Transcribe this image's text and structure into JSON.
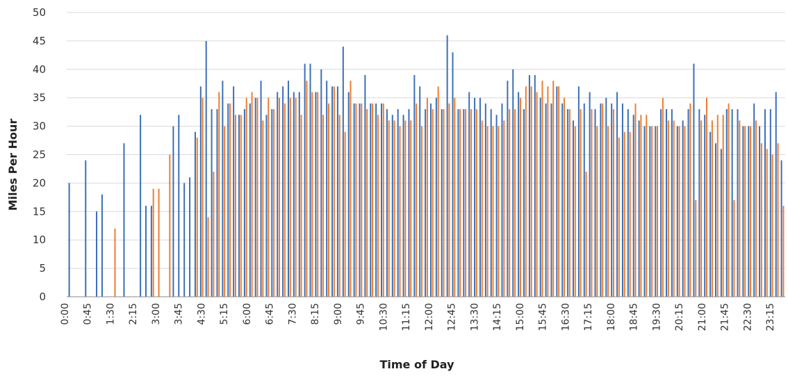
{
  "chart_data": {
    "type": "bar",
    "title": "",
    "xlabel": "Time of Day",
    "ylabel": "Miles Per Hour",
    "ylim": [
      0,
      50
    ],
    "yticks": [
      0,
      5,
      10,
      15,
      20,
      25,
      30,
      35,
      40,
      45,
      50
    ],
    "grid": true,
    "legend": "none",
    "interval_minutes": 15,
    "tick_labels": [
      "0:00",
      "0:45",
      "1:30",
      "2:15",
      "3:00",
      "3:45",
      "4:30",
      "5:15",
      "6:00",
      "6:45",
      "7:30",
      "8:15",
      "9:00",
      "9:45",
      "10:30",
      "11:15",
      "12:00",
      "12:45",
      "13:30",
      "14:15",
      "15:00",
      "15:45",
      "16:30",
      "17:15",
      "18:00",
      "18:45",
      "19:30",
      "20:15",
      "21:00",
      "21:45",
      "22:30",
      "23:15"
    ],
    "colors": {
      "series_1": "#3b6fb6",
      "series_2": "#ed7d31",
      "grid": "#d9d9d9",
      "axis": "#888888"
    },
    "series": [
      {
        "values": [
          20,
          0,
          0,
          24,
          0,
          15,
          18,
          0,
          0,
          0,
          27,
          0,
          0,
          32,
          16,
          16,
          0,
          0,
          0,
          30,
          32,
          20,
          21,
          29,
          37,
          45,
          33,
          33,
          38,
          34,
          37,
          32,
          33,
          34,
          35,
          38,
          32,
          33,
          36,
          37,
          38,
          36,
          36,
          41,
          41,
          36,
          40,
          38,
          37,
          37,
          44,
          36,
          34,
          34,
          39,
          34,
          34,
          34,
          33,
          32,
          33,
          32,
          33,
          39,
          37,
          33,
          34,
          35,
          33,
          46,
          43,
          33,
          33,
          36,
          35,
          35,
          34,
          33,
          32,
          34,
          38,
          40,
          36,
          33,
          39,
          39,
          35,
          34,
          34,
          37,
          34,
          33,
          31,
          37,
          34,
          36,
          33,
          34,
          35,
          34,
          36,
          34,
          33,
          32,
          31,
          30,
          30,
          30,
          33,
          33,
          33,
          30,
          31,
          33,
          41,
          33,
          32,
          29,
          27,
          26,
          33,
          33,
          33,
          30,
          30,
          34,
          30,
          33,
          33,
          36,
          24
        ],
        "name": ""
      },
      {
        "values": [
          0,
          0,
          0,
          0,
          0,
          0,
          0,
          0,
          12,
          0,
          0,
          0,
          0,
          0,
          0,
          19,
          19,
          0,
          25,
          0,
          0,
          0,
          0,
          28,
          35,
          14,
          22,
          36,
          30,
          34,
          32,
          32,
          35,
          36,
          35,
          31,
          35,
          33,
          35,
          34,
          35,
          35,
          32,
          38,
          36,
          36,
          32,
          34,
          37,
          32,
          29,
          38,
          34,
          34,
          33,
          34,
          32,
          34,
          31,
          31,
          30,
          31,
          31,
          34,
          30,
          35,
          33,
          37,
          33,
          34,
          35,
          33,
          33,
          33,
          33,
          31,
          30,
          30,
          30,
          31,
          33,
          33,
          35,
          37,
          37,
          36,
          38,
          37,
          38,
          37,
          35,
          33,
          30,
          33,
          22,
          33,
          30,
          34,
          30,
          33,
          28,
          29,
          29,
          34,
          32,
          32,
          30,
          30,
          35,
          31,
          31,
          30,
          30,
          34,
          17,
          31,
          35,
          31,
          32,
          32,
          34,
          17,
          31,
          30,
          30,
          31,
          27,
          26,
          25,
          27,
          16
        ],
        "name": ""
      }
    ]
  }
}
